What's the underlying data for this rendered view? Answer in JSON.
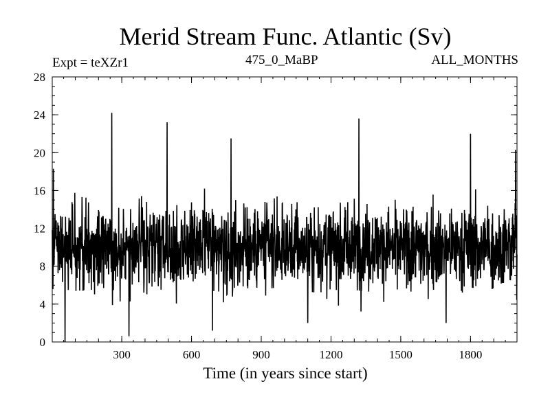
{
  "chart_data": {
    "type": "line",
    "title": "Merid Stream Func. Atlantic (Sv)",
    "annotations": {
      "left": "Expt = teXZr1",
      "center": "475_0_MaBP",
      "right": "ALL_MONTHS"
    },
    "xlabel": "Time (in years since start)",
    "ylabel": "",
    "xlim": [
      1,
      2000
    ],
    "ylim": [
      0,
      28
    ],
    "x_ticks": [
      300,
      600,
      900,
      1200,
      1500,
      1800
    ],
    "y_ticks": [
      0,
      4,
      8,
      12,
      16,
      20,
      24,
      28
    ],
    "series_style": {
      "color": "#000000"
    },
    "series_summary": {
      "points": 2000,
      "mean": 10,
      "typical_range": [
        4,
        16
      ],
      "min": 0,
      "max": 24.2
    },
    "notable_peaks": [
      {
        "x": 257,
        "y": 24.2
      },
      {
        "x": 495,
        "y": 23.2
      },
      {
        "x": 1320,
        "y": 23.6
      },
      {
        "x": 6,
        "y": 18.3
      },
      {
        "x": 1994,
        "y": 20.3
      },
      {
        "x": 1800,
        "y": 22.0
      },
      {
        "x": 770,
        "y": 21.5
      }
    ],
    "notable_troughs": [
      {
        "x": 56,
        "y": 0
      },
      {
        "x": 331,
        "y": 0.6
      },
      {
        "x": 690,
        "y": 1.2
      },
      {
        "x": 1100,
        "y": 2.0
      },
      {
        "x": 1695,
        "y": 2.0
      }
    ]
  }
}
